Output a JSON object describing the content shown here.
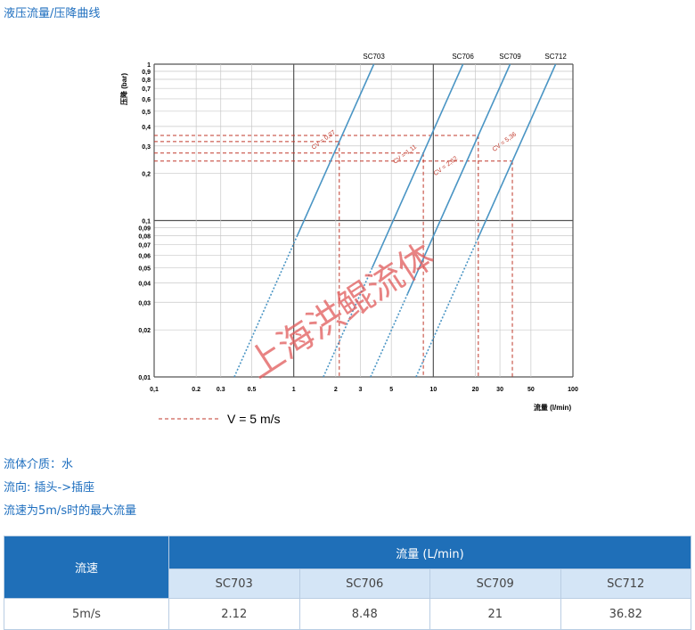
{
  "header": {
    "title": "液压流量/压降曲线"
  },
  "chart_data": {
    "type": "line",
    "log_x": true,
    "log_y": true,
    "grid": true,
    "ylabel": "压降 (bar)",
    "xlabel": "流量 (l/min)",
    "xlim": [
      0.1,
      100
    ],
    "ylim": [
      0.01,
      1
    ],
    "xticks": [
      {
        "value": 0.1,
        "label": "0,1"
      },
      0.2,
      0.3,
      0.5,
      1,
      2,
      3,
      5,
      10,
      20,
      30,
      50,
      100
    ],
    "yticks": [
      {
        "value": 0.01,
        "label": "0,01"
      },
      {
        "value": 0.02,
        "label": "0,02"
      },
      {
        "value": 0.03,
        "label": "0,03"
      },
      {
        "value": 0.04,
        "label": "0,04"
      },
      {
        "value": 0.05,
        "label": "0,05"
      },
      {
        "value": 0.06,
        "label": "0,06"
      },
      {
        "value": 0.07,
        "label": "0,07"
      },
      {
        "value": 0.08,
        "label": "0,08"
      },
      {
        "value": 0.09,
        "label": "0,09"
      },
      {
        "value": 0.1,
        "label": "0,1"
      },
      {
        "value": 0.2,
        "label": "0,2"
      },
      {
        "value": 0.3,
        "label": "0,3"
      },
      {
        "value": 0.4,
        "label": "0,4"
      },
      {
        "value": 0.5,
        "label": "0,5"
      },
      {
        "value": 0.6,
        "label": "0,6"
      },
      {
        "value": 0.7,
        "label": "0,7"
      },
      {
        "value": 0.8,
        "label": "0,8"
      },
      {
        "value": 0.9,
        "label": "0,9"
      },
      1
    ],
    "series": [
      {
        "name": "SC703",
        "annotation": "CV = 0,27",
        "color": "#4a95c4",
        "x": [
          0.375,
          1.06,
          3.75
        ],
        "values": [
          0.01,
          0.08,
          1
        ]
      },
      {
        "name": "SC706",
        "annotation": "CV = 1,11",
        "color": "#4a95c4",
        "x": [
          1.63,
          3.65,
          16.3
        ],
        "values": [
          0.01,
          0.05,
          1
        ]
      },
      {
        "name": "SC709",
        "annotation": "CV = 2,62",
        "color": "#4a95c4",
        "x": [
          3.55,
          6.54,
          35.5
        ],
        "values": [
          0.01,
          0.034,
          1
        ]
      },
      {
        "name": "SC712",
        "annotation": "CV = 5,36",
        "color": "#4a95c4",
        "x": [
          7.52,
          20.6,
          75.2
        ],
        "values": [
          0.01,
          0.075,
          1
        ]
      }
    ],
    "reference": {
      "label": "V = 5 m/s",
      "color": "#c0392b",
      "x": [
        2.12,
        8.48,
        21,
        36.82
      ],
      "values": [
        0.32,
        0.27,
        0.35,
        0.24
      ]
    },
    "watermark": "上海洪鲲流体"
  },
  "notes": [
    "流体介质：水",
    "流向: 插头->插座",
    "流速为5m/s时的最大流量"
  ],
  "table": {
    "header": [
      "流速",
      "流量 (L/min)"
    ],
    "columns": [
      "SC703",
      "SC706",
      "SC709",
      "SC712"
    ],
    "rows": [
      [
        "5m/s",
        2.12,
        8.48,
        21,
        36.82
      ]
    ]
  }
}
